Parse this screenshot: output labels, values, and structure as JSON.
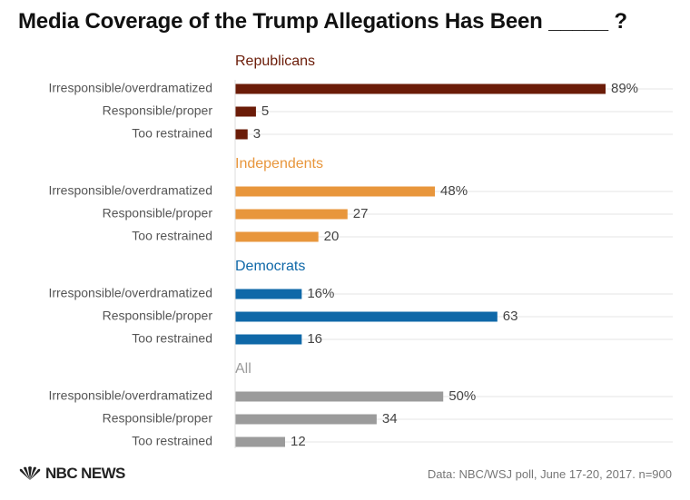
{
  "title": "Media Coverage of the Trump Allegations Has Been _____ ?",
  "source": "Data: NBC/WSJ poll, June 17-20, 2017. n=900",
  "logo": {
    "text": "NBC NEWS",
    "icon": "peacock-icon"
  },
  "chart_data": {
    "type": "bar",
    "orientation": "horizontal",
    "title": "Media Coverage of the Trump Allegations Has Been _____ ?",
    "categories": [
      "Irresponsible/overdramatized",
      "Responsible/proper",
      "Too restrained"
    ],
    "xlim": [
      0,
      100
    ],
    "grid": true,
    "legend": "none",
    "groups": [
      {
        "name": "Republicans",
        "color": "#6b1c08",
        "values": [
          89,
          5,
          3
        ],
        "labels": [
          "89%",
          "5",
          "3"
        ]
      },
      {
        "name": "Independents",
        "color": "#e8963c",
        "values": [
          48,
          27,
          20
        ],
        "labels": [
          "48%",
          "27",
          "20"
        ]
      },
      {
        "name": "Democrats",
        "color": "#0f68a8",
        "values": [
          16,
          63,
          16
        ],
        "labels": [
          "16%",
          "63",
          "16"
        ]
      },
      {
        "name": "All",
        "color": "#9b9b9b",
        "values": [
          50,
          34,
          12
        ],
        "labels": [
          "50%",
          "34",
          "12"
        ]
      }
    ]
  }
}
